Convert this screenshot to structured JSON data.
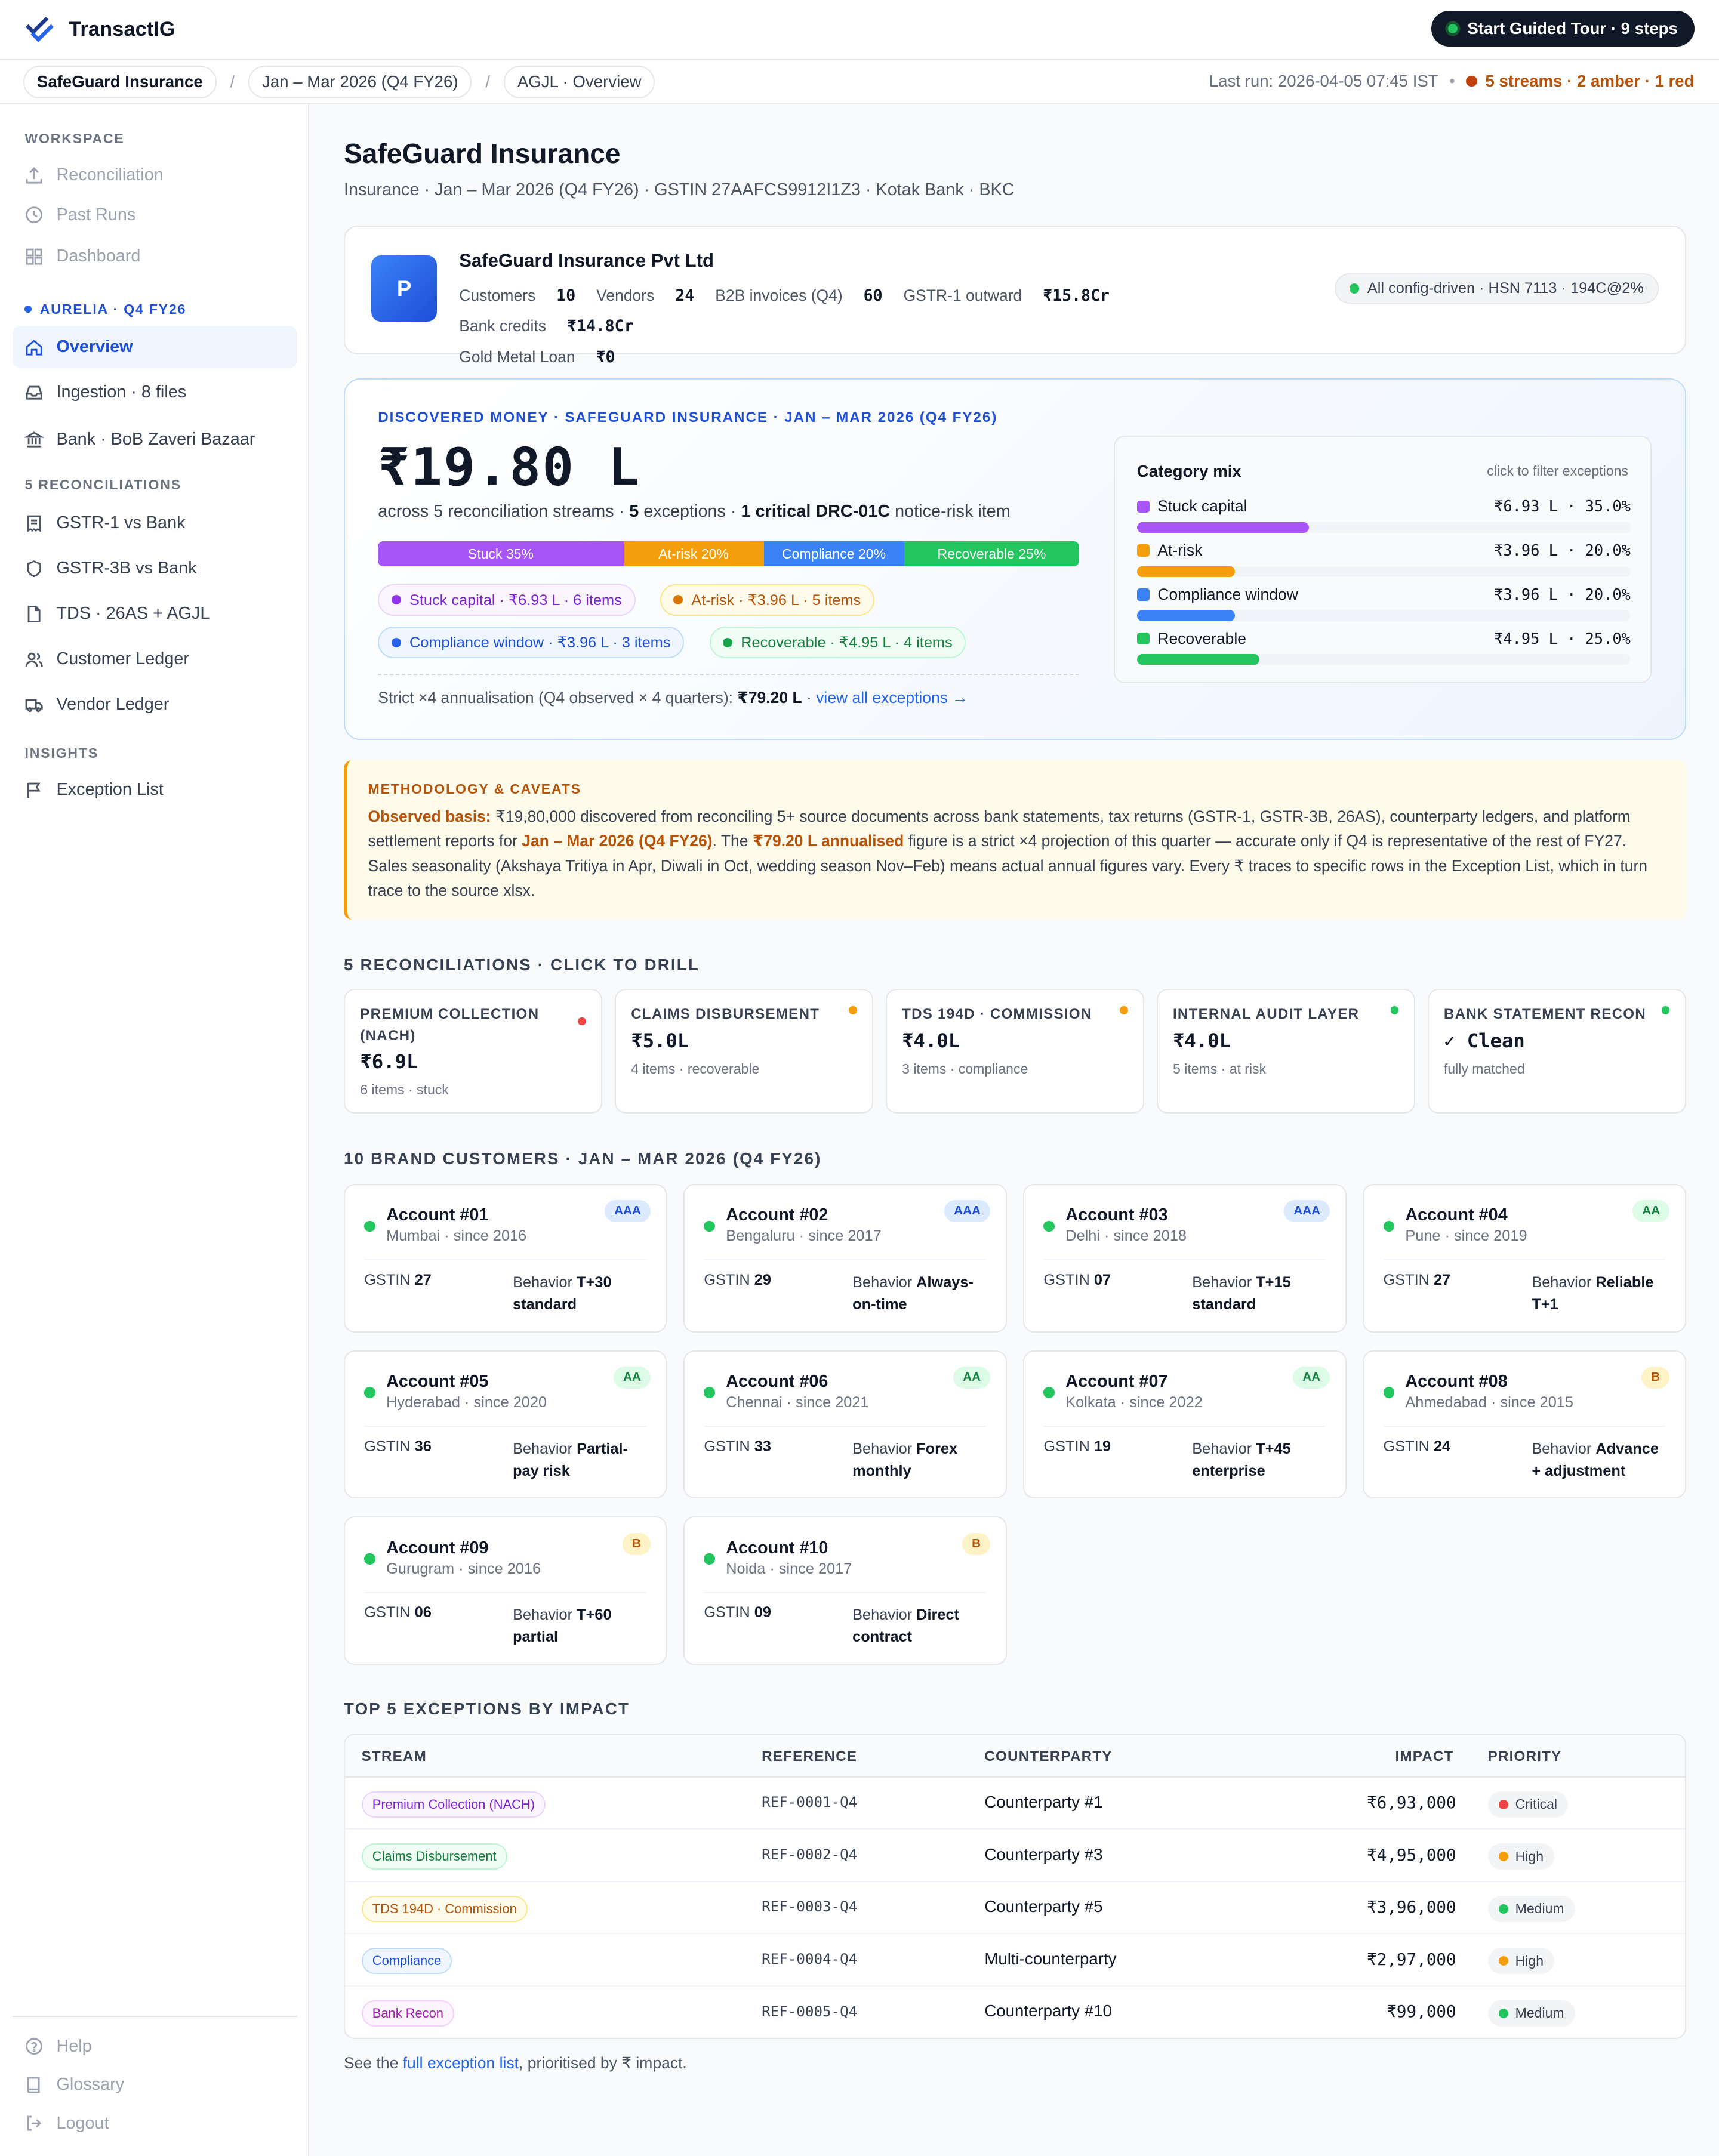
{
  "app": {
    "name": "TransactIG",
    "tour_label": "Start Guided Tour · 9 steps"
  },
  "crumbs": [
    "SafeGuard Insurance",
    "Jan – Mar 2026 (Q4 FY26)",
    "AGJL · Overview"
  ],
  "last_run": "Last run: 2026-04-05 07:45 IST",
  "run_status": "5 streams · 2 amber · 1 red",
  "sidebar": {
    "workspace_h": "WORKSPACE",
    "workspace": [
      "Reconciliation",
      "Past Runs",
      "Dashboard"
    ],
    "entity_h": "AURELIA · Q4 FY26",
    "entity": [
      "Overview",
      "Ingestion · 8 files",
      "Bank · BoB Zaveri Bazaar"
    ],
    "recon_h": "5 RECONCILIATIONS",
    "recon": [
      "GSTR-1 vs Bank",
      "GSTR-3B vs Bank",
      "TDS · 26AS + AGJL",
      "Customer Ledger",
      "Vendor Ledger"
    ],
    "insights_h": "INSIGHTS",
    "insights": [
      "Exception List"
    ],
    "bottom": [
      "Help",
      "Glossary",
      "Logout"
    ]
  },
  "page": {
    "title": "SafeGuard Insurance",
    "subtitle": "Insurance · Jan – Mar 2026 (Q4 FY26) · GSTIN 27AAFCS9912I1Z3 · Kotak Bank · BKC"
  },
  "company": {
    "initial": "P",
    "name": "SafeGuard Insurance Pvt Ltd",
    "stats": [
      {
        "label": "Customers",
        "value": "10"
      },
      {
        "label": "Vendors",
        "value": "24"
      },
      {
        "label": "B2B invoices (Q4)",
        "value": "60"
      },
      {
        "label": "GSTR-1 outward",
        "value": "₹15.8Cr"
      },
      {
        "label": "Bank credits",
        "value": "₹14.8Cr"
      },
      {
        "label": "Gold Metal Loan",
        "value": "₹0"
      }
    ],
    "config_pill": "All config-driven · HSN 7113 · 194C@2%"
  },
  "discovered": {
    "heading": "DISCOVERED MONEY · SAFEGUARD INSURANCE · JAN – MAR 2026 (Q4 FY26)",
    "amount": "₹19.80 L",
    "across_pre": "across 5 reconciliation streams · ",
    "exceptions_n": "5",
    "exceptions_t": " exceptions · ",
    "critical": "1 critical DRC-01C",
    "across_post": " notice-risk item",
    "segments": [
      {
        "label": "Stuck 35%",
        "pct": 35,
        "color": "#a855f7"
      },
      {
        "label": "At-risk 20%",
        "pct": 20,
        "color": "#f59e0b"
      },
      {
        "label": "Compliance 20%",
        "pct": 20,
        "color": "#3b82f6"
      },
      {
        "label": "Recoverable 25%",
        "pct": 25,
        "color": "#22c55e"
      }
    ],
    "chips": [
      "Stuck capital · ₹6.93 L · 6 items",
      "At-risk · ₹3.96 L · 5 items",
      "Compliance window · ₹3.96 L · 3 items",
      "Recoverable · ₹4.95 L · 4 items"
    ],
    "strict_pre": "Strict ×4 annualisation (Q4 observed × 4 quarters): ",
    "strict_val": "₹79.20 L",
    "strict_sep": " · ",
    "strict_link": "view all exceptions →"
  },
  "mix": {
    "title": "Category mix",
    "hint": "click to filter exceptions",
    "rows": [
      {
        "label": "Stuck capital",
        "value": "₹6.93 L · 35.0%",
        "pct": 35,
        "color": "#a855f7"
      },
      {
        "label": "At-risk",
        "value": "₹3.96 L · 20.0%",
        "pct": 20,
        "color": "#f59e0b"
      },
      {
        "label": "Compliance window",
        "value": "₹3.96 L · 20.0%",
        "pct": 20,
        "color": "#3b82f6"
      },
      {
        "label": "Recoverable",
        "value": "₹4.95 L · 25.0%",
        "pct": 25,
        "color": "#22c55e"
      }
    ]
  },
  "methodology": {
    "heading": "METHODOLOGY & CAVEATS",
    "b1": "Observed basis:",
    "t1": " ₹19,80,000 discovered from reconciling 5+ source documents across bank statements, tax returns (GSTR-1, GSTR-3B, 26AS), counterparty ledgers, and platform settlement reports for ",
    "b2": "Jan – Mar 2026 (Q4 FY26)",
    "t2": ". The ",
    "b3": "₹79.20 L annualised",
    "t3": " figure is a strict ×4 projection of this quarter — accurate only if Q4 is representative of the rest of FY27. Sales seasonality (Akshaya Tritiya in Apr, Diwali in Oct, wedding season Nov–Feb) means actual annual figures vary. Every ₹ traces to specific rows in the Exception List, which in turn trace to the source xlsx."
  },
  "recon_heading": "5 RECONCILIATIONS · CLICK TO DRILL",
  "recons": [
    {
      "title": "PREMIUM COLLECTION (NACH)",
      "value": "₹6.9L",
      "sub": "6 items · stuck",
      "dot": "#ef4444"
    },
    {
      "title": "CLAIMS DISBURSEMENT",
      "value": "₹5.0L",
      "sub": "4 items · recoverable",
      "dot": "#f59e0b"
    },
    {
      "title": "TDS 194D · COMMISSION",
      "value": "₹4.0L",
      "sub": "3 items · compliance",
      "dot": "#f59e0b"
    },
    {
      "title": "INTERNAL AUDIT LAYER",
      "value": "₹4.0L",
      "sub": "5 items · at risk",
      "dot": "#22c55e"
    },
    {
      "title": "BANK STATEMENT RECON",
      "value": "✓ Clean",
      "sub": "fully matched",
      "dot": "#22c55e"
    }
  ],
  "customers_heading": "10 BRAND CUSTOMERS · JAN – MAR 2026 (Q4 FY26)",
  "customers": [
    {
      "name": "Account #01",
      "loc": "Mumbai · since 2016",
      "tier": "AAA",
      "gstin": "27",
      "behavior": "T+30 standard"
    },
    {
      "name": "Account #02",
      "loc": "Bengaluru · since 2017",
      "tier": "AAA",
      "gstin": "29",
      "behavior": "Always-on-time"
    },
    {
      "name": "Account #03",
      "loc": "Delhi · since 2018",
      "tier": "AAA",
      "gstin": "07",
      "behavior": "T+15 standard"
    },
    {
      "name": "Account #04",
      "loc": "Pune · since 2019",
      "tier": "AA",
      "gstin": "27",
      "behavior": "Reliable T+1"
    },
    {
      "name": "Account #05",
      "loc": "Hyderabad · since 2020",
      "tier": "AA",
      "gstin": "36",
      "behavior": "Partial-pay risk"
    },
    {
      "name": "Account #06",
      "loc": "Chennai · since 2021",
      "tier": "AA",
      "gstin": "33",
      "behavior": "Forex monthly"
    },
    {
      "name": "Account #07",
      "loc": "Kolkata · since 2022",
      "tier": "AA",
      "gstin": "19",
      "behavior": "T+45 enterprise"
    },
    {
      "name": "Account #08",
      "loc": "Ahmedabad · since 2015",
      "tier": "B",
      "gstin": "24",
      "behavior": "Advance + adjustment"
    },
    {
      "name": "Account #09",
      "loc": "Gurugram · since 2016",
      "tier": "B",
      "gstin": "06",
      "behavior": "T+60 partial"
    },
    {
      "name": "Account #10",
      "loc": "Noida · since 2017",
      "tier": "B",
      "gstin": "09",
      "behavior": "Direct contract"
    }
  ],
  "gstin_label": "GSTIN",
  "behavior_label": "Behavior",
  "top_heading": "TOP 5 EXCEPTIONS BY IMPACT",
  "table": {
    "headers": [
      "STREAM",
      "REFERENCE",
      "COUNTERPARTY",
      "IMPACT",
      "PRIORITY"
    ],
    "rows": [
      {
        "stream": "Premium Collection (NACH)",
        "ref": "REF-0001-Q4",
        "cp": "Counterparty #1",
        "impact": "₹6,93,000",
        "priority": "Critical"
      },
      {
        "stream": "Claims Disbursement",
        "ref": "REF-0002-Q4",
        "cp": "Counterparty #3",
        "impact": "₹4,95,000",
        "priority": "High"
      },
      {
        "stream": "TDS 194D · Commission",
        "ref": "REF-0003-Q4",
        "cp": "Counterparty #5",
        "impact": "₹3,96,000",
        "priority": "Medium"
      },
      {
        "stream": "Compliance",
        "ref": "REF-0004-Q4",
        "cp": "Multi-counterparty",
        "impact": "₹2,97,000",
        "priority": "High"
      },
      {
        "stream": "Bank Recon",
        "ref": "REF-0005-Q4",
        "cp": "Counterparty #10",
        "impact": "₹99,000",
        "priority": "Medium"
      }
    ]
  },
  "footer": {
    "pre": "See the ",
    "link": "full exception list",
    "post": ", prioritised by ₹ impact."
  }
}
